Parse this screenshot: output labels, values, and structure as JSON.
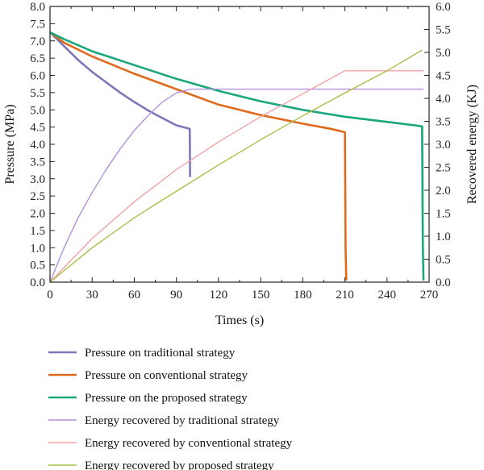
{
  "chart_data": {
    "type": "line",
    "xlabel": "Times (s)",
    "ylabel_left": "Pressure (MPa)",
    "ylabel_right": "Recovered energy (KJ)",
    "xlim": [
      0,
      270
    ],
    "ylim_left": [
      0,
      8
    ],
    "ylim_right": [
      0,
      6
    ],
    "x_ticks": [
      "0",
      "30",
      "60",
      "90",
      "120",
      "150",
      "180",
      "210",
      "240",
      "270"
    ],
    "y_left_ticks": [
      "0.0",
      "0.5",
      "1.0",
      "1.5",
      "2.0",
      "2.5",
      "3.0",
      "3.5",
      "4.0",
      "4.5",
      "5.0",
      "5.5",
      "6.0",
      "6.5",
      "7.0",
      "7.5",
      "8.0"
    ],
    "y_right_ticks": [
      "0.0",
      "0.5",
      "1.0",
      "1.5",
      "2.0",
      "2.5",
      "3.0",
      "3.5",
      "4.0",
      "4.5",
      "5.0",
      "5.5",
      "6.0"
    ],
    "grid": false,
    "legend_position": "bottom",
    "series": [
      {
        "name": "Pressure on traditional strategy",
        "axis": "left",
        "color": "#7b78b8",
        "x": [
          0,
          5,
          10,
          20,
          30,
          40,
          50,
          60,
          70,
          80,
          90,
          99.5,
          99.6,
          99.7,
          100
        ],
        "y": [
          7.25,
          7.05,
          6.85,
          6.45,
          6.1,
          5.8,
          5.5,
          5.23,
          4.98,
          4.76,
          4.55,
          4.45,
          4.0,
          3.1,
          3.05
        ]
      },
      {
        "name": "Pressure on conventional strategy",
        "axis": "left",
        "color": "#e06a1c",
        "x": [
          0,
          5,
          10,
          30,
          60,
          90,
          120,
          150,
          180,
          200,
          210,
          210.5,
          211
        ],
        "y": [
          7.25,
          7.1,
          6.95,
          6.55,
          6.05,
          5.6,
          5.15,
          4.85,
          4.6,
          4.45,
          4.35,
          1.0,
          0.05
        ]
      },
      {
        "name": "Pressure on the proposed strategy",
        "axis": "left",
        "color": "#1aa77e",
        "x": [
          0,
          5,
          10,
          30,
          60,
          90,
          120,
          150,
          180,
          210,
          240,
          260,
          265,
          265.5,
          266
        ],
        "y": [
          7.25,
          7.15,
          7.05,
          6.7,
          6.3,
          5.9,
          5.55,
          5.25,
          5.0,
          4.8,
          4.65,
          4.55,
          4.52,
          1.0,
          0.05
        ]
      },
      {
        "name": "Energy recovered by traditional strategy",
        "axis": "right",
        "color": "#b291d9",
        "x": [
          0,
          10,
          20,
          30,
          40,
          50,
          60,
          70,
          80,
          90,
          100,
          110,
          266
        ],
        "y": [
          0,
          0.75,
          1.4,
          1.95,
          2.45,
          2.9,
          3.3,
          3.63,
          3.92,
          4.12,
          4.2,
          4.2,
          4.2
        ]
      },
      {
        "name": "Energy recovered by conventional strategy",
        "axis": "right",
        "color": "#f0a3a5",
        "x": [
          0,
          30,
          60,
          90,
          120,
          150,
          180,
          210,
          266
        ],
        "y": [
          0,
          0.95,
          1.75,
          2.45,
          3.05,
          3.6,
          4.1,
          4.6,
          4.6
        ]
      },
      {
        "name": "Energy recovered by proposed strategy",
        "axis": "right",
        "color": "#a9bf45",
        "x": [
          0,
          30,
          60,
          90,
          120,
          150,
          180,
          210,
          240,
          265
        ],
        "y": [
          0,
          0.75,
          1.4,
          1.98,
          2.55,
          3.1,
          3.62,
          4.12,
          4.6,
          5.05
        ]
      }
    ]
  }
}
